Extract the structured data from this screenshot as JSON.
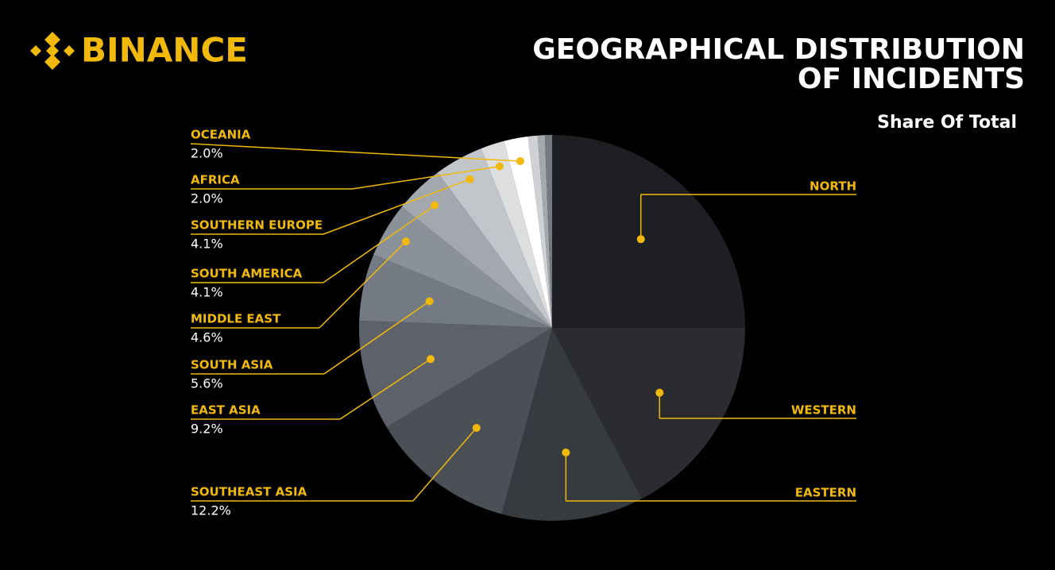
{
  "brand": "BINANCE",
  "chart_data": {
    "type": "pie",
    "title": [
      "GEOGRAPHICAL DISTRIBUTION",
      "OF INCIDENTS"
    ],
    "subtitle": "Share Of Total",
    "categories": [
      "NORTH",
      "WESTERN",
      "EASTERN",
      "SOUTHEAST ASIA",
      "EAST ASIA",
      "SOUTH ASIA",
      "MIDDLE EAST",
      "SOUTH AMERICA",
      "SOUTHERN EUROPE",
      "AFRICA",
      "OCEANIA",
      null,
      null,
      null
    ],
    "values": [
      25,
      17.3,
      11.9,
      12.2,
      9.2,
      5.6,
      4.6,
      4.1,
      4.1,
      2.0,
      2.0,
      0.8,
      0.6,
      0.6
    ],
    "value_labels": [
      null,
      null,
      null,
      "12.2%",
      "9.2%",
      "5.6%",
      "4.6%",
      "4.1%",
      "4.1%",
      "2.0%",
      "2.0%",
      null,
      null,
      null
    ],
    "colors": [
      "#1e1f22",
      "#2a2c30",
      "#373a3f",
      "#4b4f56",
      "#5d626a",
      "#737a84",
      "#8b9199",
      "#a3a8ae",
      "#c2c5c9",
      "#dcdee0",
      "#ffffff",
      "#cfd1d4",
      "#a4a9ae",
      "#747a81"
    ],
    "label_color": "#f0b90b"
  }
}
